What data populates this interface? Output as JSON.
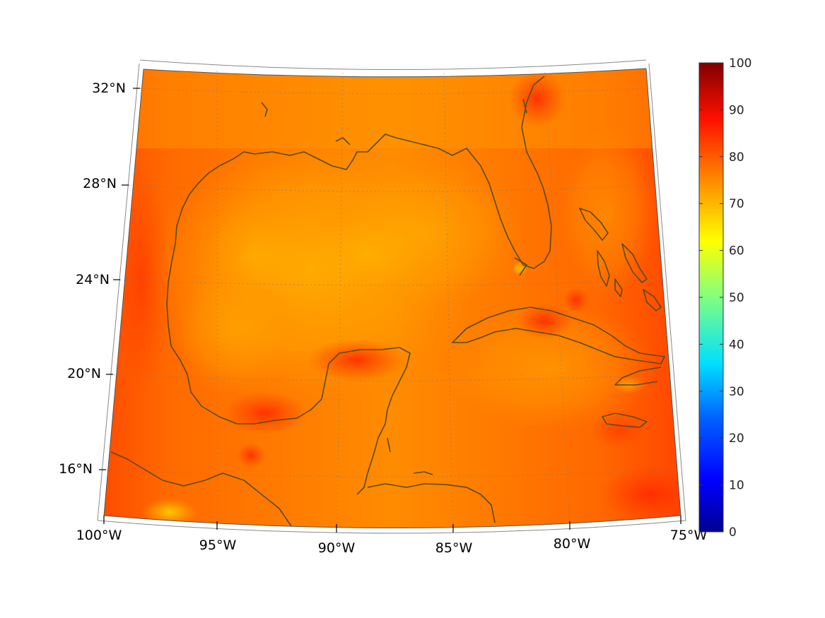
{
  "map": {
    "lon_labels": [
      "100°W",
      "95°W",
      "90°W",
      "85°W",
      "80°W",
      "75°W"
    ],
    "lat_labels": [
      "32°N",
      "28°N",
      "24°N",
      "20°N",
      "16°N"
    ],
    "extent": {
      "lon_min": -100,
      "lon_max": -75,
      "lat_min": 14,
      "lat_max": 33
    },
    "projection": "conic",
    "gridlines": "dotted",
    "coastline_color": "#5a4a1a",
    "field_dominant_range": [
      65,
      90
    ]
  },
  "colorbar": {
    "ticks": [
      "0",
      "10",
      "20",
      "30",
      "40",
      "50",
      "60",
      "70",
      "80",
      "90",
      "100"
    ],
    "min": 0,
    "max": 100,
    "colormap": "jet",
    "colors": [
      "#00008f",
      "#0000ff",
      "#0080ff",
      "#00ffff",
      "#80ff80",
      "#ffff00",
      "#ff8000",
      "#ff0000",
      "#800000"
    ]
  }
}
